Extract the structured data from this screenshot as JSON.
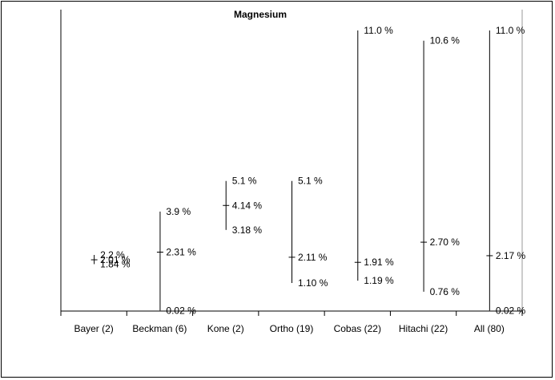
{
  "chart_data": {
    "type": "high-low-median",
    "title": "Magnesium",
    "xlabel": "",
    "ylabel": "",
    "ylim": [
      0,
      11.5
    ],
    "grid": false,
    "legend": "none",
    "categories": [
      "Bayer (2)",
      "Beckman (6)",
      "Kone (2)",
      "Ortho (19)",
      "Cobas (22)",
      "Hitachi (22)",
      "All (80)"
    ],
    "series": [
      {
        "max": 2.2,
        "median": 2.01,
        "min": 1.84,
        "max_label": "2.2 %",
        "median_label": "2.01 %",
        "min_label": "1.84 %"
      },
      {
        "max": 3.9,
        "median": 2.31,
        "min": 0.02,
        "max_label": "3.9 %",
        "median_label": "2.31 %",
        "min_label": "0.02 %"
      },
      {
        "max": 5.1,
        "median": 4.14,
        "min": 3.18,
        "max_label": "5.1 %",
        "median_label": "4.14 %",
        "min_label": "3.18 %"
      },
      {
        "max": 5.1,
        "median": 2.11,
        "min": 1.1,
        "max_label": "5.1 %",
        "median_label": "2.11 %",
        "min_label": "1.10 %"
      },
      {
        "max": 11.0,
        "median": 1.91,
        "min": 1.19,
        "max_label": "11.0 %",
        "median_label": "1.91 %",
        "min_label": "1.19 %"
      },
      {
        "max": 10.6,
        "median": 2.7,
        "min": 0.76,
        "max_label": "10.6 %",
        "median_label": "2.70 %",
        "min_label": "0.76 %"
      },
      {
        "max": 11.0,
        "median": 2.17,
        "min": 0.02,
        "max_label": "11.0 %",
        "median_label": "2.17 %",
        "min_label": "0.02 %"
      }
    ]
  }
}
